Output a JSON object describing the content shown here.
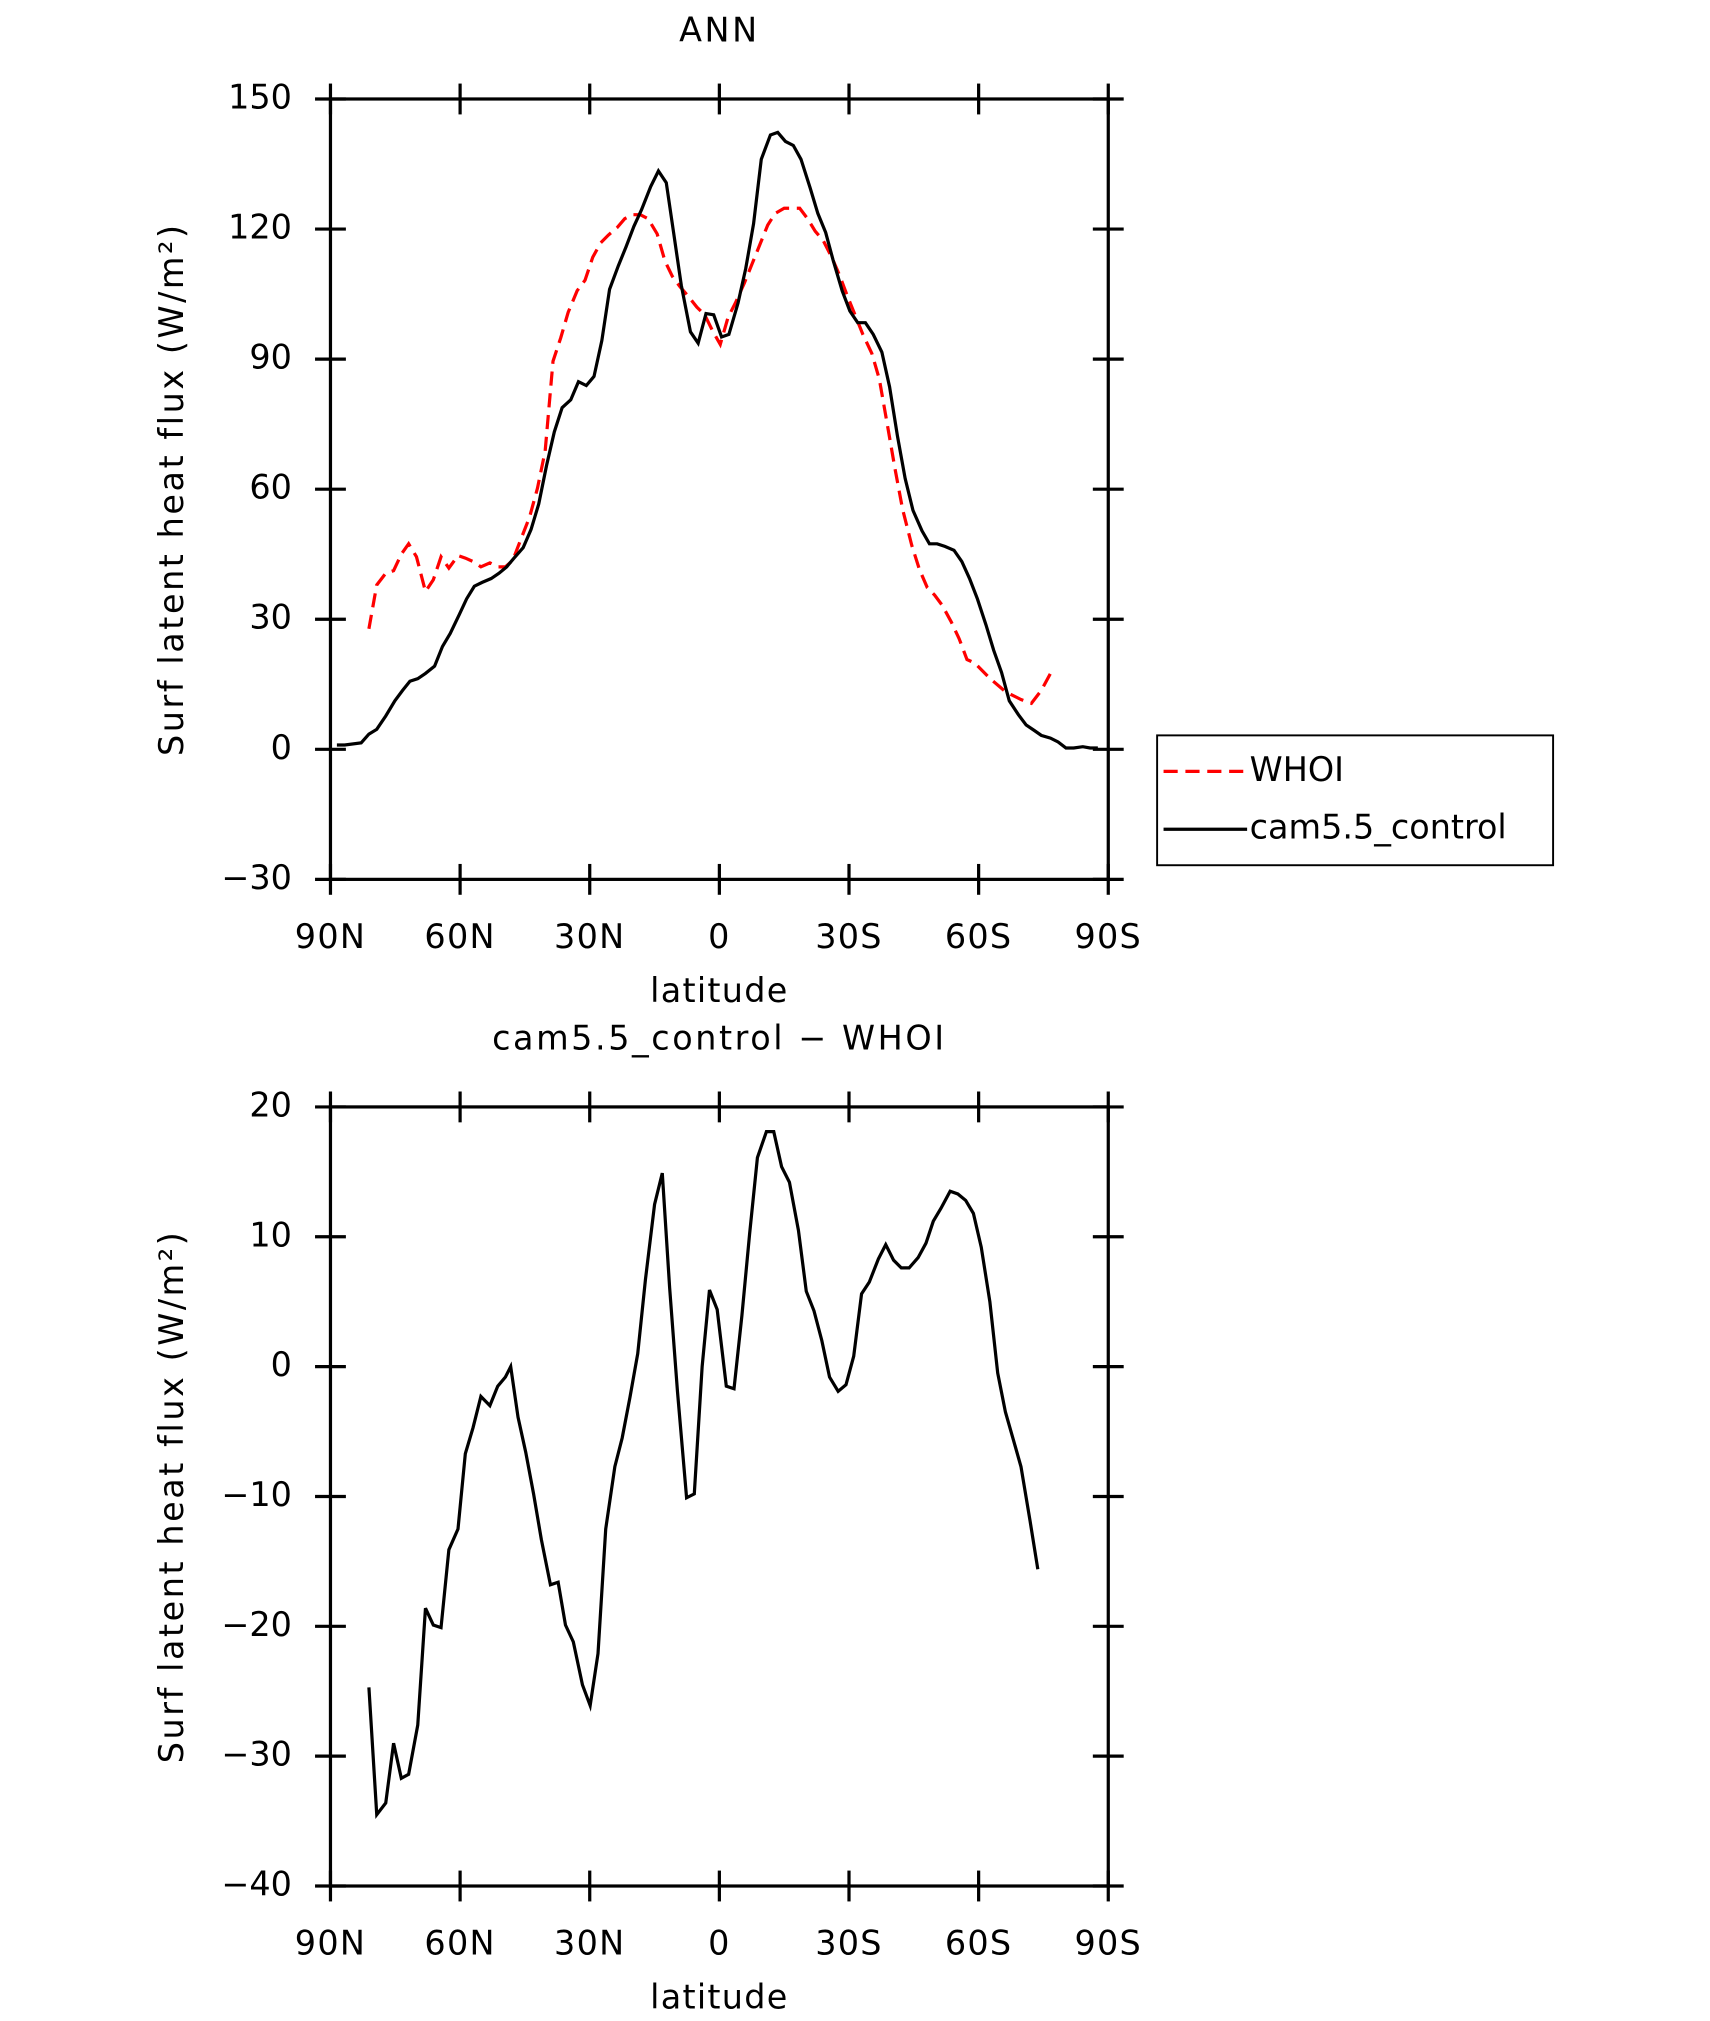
{
  "chart_data": [
    {
      "type": "line",
      "title": "ANN",
      "xlabel": "latitude",
      "ylabel": "Surf latent heat flux (W/m²)",
      "xlim": [
        90,
        -90
      ],
      "xticks": [
        {
          "value": 90,
          "label": "90N"
        },
        {
          "value": 60,
          "label": "60N"
        },
        {
          "value": 30,
          "label": "30N"
        },
        0,
        {
          "value": -30,
          "label": "30S"
        },
        {
          "value": -60,
          "label": "60S"
        },
        {
          "value": -90,
          "label": "90S"
        }
      ],
      "ylim": [
        -30,
        150
      ],
      "yticks": [
        {
          "value": -30,
          "label": "−30"
        },
        0,
        30,
        60,
        90,
        120,
        150
      ],
      "legend": "right",
      "series": [
        {
          "name": "WHOI",
          "color": "#ff0000",
          "dash": true,
          "x": [
            81.1,
            79.3,
            77.2,
            75.4,
            73.6,
            71.9,
            70.1,
            68.0,
            66.2,
            64.4,
            62.6,
            60.5,
            58.8,
            57.0,
            55.2,
            53.1,
            51.3,
            49.5,
            47.8,
            46.0,
            43.9,
            42.1,
            40.3,
            38.5,
            36.7,
            35.0,
            32.9,
            31.1,
            29.3,
            27.5,
            25.7,
            23.6,
            21.9,
            20.1,
            18.3,
            16.5,
            14.4,
            12.6,
            10.9,
            9.1,
            7.3,
            5.2,
            3.4,
            1.6,
            -0.2,
            -2.0,
            -3.7,
            -5.8,
            -7.6,
            -9.4,
            -11.2,
            -12.9,
            -15.0,
            -16.8,
            -18.6,
            -20.4,
            -22.2,
            -24.0,
            -26.0,
            -27.8,
            -29.6,
            -31.4,
            -33.2,
            -35.3,
            -37.0,
            -38.8,
            -40.6,
            -42.4,
            -44.5,
            -46.3,
            -48.1,
            -49.8,
            -51.6,
            -53.7,
            -55.5,
            -57.3,
            -59.1,
            -62.7,
            -66.2,
            -69.8,
            -72.2,
            -74.5,
            -76.9
          ],
          "values": [
            27.8,
            37.9,
            40.6,
            41.2,
            45.0,
            47.4,
            44.4,
            36.4,
            39.1,
            44.4,
            41.8,
            44.7,
            44.1,
            43.3,
            42.1,
            43.0,
            42.1,
            42.1,
            43.6,
            48.3,
            53.6,
            60.2,
            68.8,
            89.5,
            94.9,
            100.8,
            105.8,
            108.2,
            113.5,
            116.8,
            118.6,
            120.4,
            122.4,
            123.3,
            123.3,
            122.4,
            118.9,
            112.6,
            109.1,
            106.7,
            104.6,
            102.0,
            100.2,
            96.6,
            93.4,
            99.6,
            102.9,
            107.6,
            112.0,
            116.5,
            120.9,
            123.6,
            124.8,
            124.8,
            124.8,
            122.4,
            119.5,
            117.4,
            113.5,
            109.4,
            104.6,
            100.2,
            95.7,
            91.3,
            85.4,
            75.3,
            64.9,
            55.4,
            47.1,
            41.5,
            37.3,
            35.6,
            33.2,
            29.3,
            25.5,
            20.7,
            19.9,
            16.3,
            13.3,
            11.5,
            10.6,
            13.6,
            18.0
          ]
        },
        {
          "name": "cam5.5_control",
          "color": "#000000",
          "dash": false,
          "x": [
            88.5,
            86.7,
            82.9,
            81.1,
            79.3,
            77.2,
            75.1,
            73.3,
            71.6,
            69.8,
            68.0,
            65.9,
            64.1,
            62.3,
            60.2,
            58.5,
            56.7,
            54.9,
            52.8,
            51.0,
            49.2,
            47.5,
            45.4,
            43.6,
            41.8,
            40.0,
            38.2,
            36.4,
            34.4,
            32.6,
            30.8,
            29.0,
            27.2,
            25.4,
            23.4,
            21.6,
            19.8,
            18.0,
            15.9,
            14.1,
            12.3,
            10.6,
            8.8,
            6.7,
            4.9,
            3.1,
            1.3,
            -0.5,
            -2.2,
            -4.3,
            -6.1,
            -7.9,
            -9.7,
            -11.8,
            -13.5,
            -15.3,
            -17.1,
            -18.9,
            -21.0,
            -22.8,
            -24.6,
            -26.3,
            -28.4,
            -30.2,
            -32.0,
            -33.8,
            -35.6,
            -37.6,
            -39.4,
            -41.2,
            -43.0,
            -44.8,
            -46.9,
            -48.6,
            -50.4,
            -52.2,
            -54.3,
            -56.1,
            -57.9,
            -59.7,
            -61.7,
            -63.5,
            -65.3,
            -67.1,
            -69.2,
            -71.0,
            -72.8,
            -74.5,
            -76.6,
            -78.4,
            -80.2,
            -82.0,
            -84.1,
            -85.8,
            -87.6
          ],
          "values": [
            1,
            1,
            1.5,
            3.5,
            4.6,
            7.7,
            11.2,
            13.6,
            15.7,
            16.3,
            17.5,
            19.2,
            23.7,
            26.7,
            31.1,
            34.7,
            37.6,
            38.5,
            39.4,
            40.6,
            42.1,
            44.1,
            46.5,
            50.7,
            56.6,
            65.5,
            73.2,
            78.8,
            80.6,
            84.8,
            83.9,
            86.0,
            94.3,
            106.1,
            111.5,
            115.9,
            120.6,
            124.5,
            129.8,
            133.4,
            130.7,
            119.2,
            107.0,
            96.3,
            93.7,
            100.5,
            100.2,
            95.1,
            95.7,
            102.9,
            110.9,
            121.2,
            136.1,
            141.7,
            142.3,
            140.2,
            139.3,
            136.1,
            129.5,
            123.6,
            119.2,
            112.9,
            105.8,
            101.1,
            98.4,
            98.4,
            95.7,
            91.6,
            83.6,
            72.3,
            62.5,
            55.1,
            50.4,
            47.4,
            47.4,
            46.8,
            45.9,
            43.3,
            39.4,
            34.7,
            28.7,
            22.8,
            17.7,
            11.2,
            8.0,
            5.6,
            4.4,
            3.2,
            2.6,
            1.7,
            0.3,
            0.3,
            0.6,
            0.3,
            0.3
          ]
        }
      ]
    },
    {
      "type": "line",
      "title": "cam5.5_control − WHOI",
      "xlabel": "latitude",
      "ylabel": "Surf latent heat flux (W/m²)",
      "xlim": [
        90,
        -90
      ],
      "xticks": [
        {
          "value": 90,
          "label": "90N"
        },
        {
          "value": 60,
          "label": "60N"
        },
        {
          "value": 30,
          "label": "30N"
        },
        0,
        {
          "value": -30,
          "label": "30S"
        },
        {
          "value": -60,
          "label": "60S"
        },
        {
          "value": -90,
          "label": "90S"
        }
      ],
      "ylim": [
        -40,
        20
      ],
      "yticks": [
        {
          "value": -40,
          "label": "−40"
        },
        {
          "value": -30,
          "label": "−30"
        },
        {
          "value": -20,
          "label": "−20"
        },
        {
          "value": -10,
          "label": "−10"
        },
        0,
        10,
        20
      ],
      "series": [
        {
          "color": "#000000",
          "dash": false,
          "x": [
            81.1,
            79.3,
            77.2,
            75.4,
            73.6,
            71.9,
            69.8,
            68.0,
            66.2,
            64.4,
            62.6,
            60.5,
            58.8,
            57.0,
            55.2,
            53.1,
            51.3,
            49.5,
            48.3,
            46.6,
            44.8,
            43.0,
            41.2,
            39.1,
            37.3,
            35.6,
            33.8,
            31.7,
            29.9,
            28.1,
            26.3,
            24.2,
            22.5,
            20.7,
            18.9,
            17.1,
            15.0,
            13.2,
            11.5,
            9.7,
            7.6,
            5.8,
            4.0,
            2.3,
            0.5,
            -1.6,
            -3.4,
            -5.2,
            -7.0,
            -8.8,
            -10.9,
            -12.6,
            -14.4,
            -16.2,
            -18.3,
            -20.1,
            -21.9,
            -23.7,
            -25.5,
            -27.5,
            -29.3,
            -31.1,
            -32.9,
            -34.7,
            -36.8,
            -38.5,
            -40.3,
            -42.1,
            -43.9,
            -46.0,
            -47.8,
            -49.5,
            -51.3,
            -53.4,
            -55.2,
            -57.0,
            -58.8,
            -60.6,
            -62.6,
            -64.4,
            -66.2,
            -68.0,
            -69.8,
            -71.9,
            -73.7
          ],
          "values": [
            -24.7,
            -34.5,
            -33.6,
            -29.0,
            -31.7,
            -31.4,
            -27.6,
            -18.6,
            -19.9,
            -20.1,
            -14.1,
            -12.5,
            -6.7,
            -4.7,
            -2.3,
            -3.0,
            -1.5,
            -0.8,
            0.0,
            -3.9,
            -6.6,
            -9.8,
            -13.3,
            -16.8,
            -16.6,
            -19.9,
            -21.2,
            -24.5,
            -26.1,
            -22.1,
            -12.5,
            -7.7,
            -5.5,
            -2.4,
            1.0,
            6.7,
            12.5,
            14.9,
            6.1,
            -1.9,
            -10.1,
            -9.8,
            0.0,
            5.9,
            4.4,
            -1.5,
            -1.7,
            3.9,
            10.2,
            16.1,
            18.1,
            18.1,
            15.4,
            14.2,
            10.5,
            5.8,
            4.3,
            2.0,
            -0.8,
            -1.9,
            -1.4,
            0.8,
            5.6,
            6.5,
            8.3,
            9.4,
            8.2,
            7.6,
            7.6,
            8.4,
            9.5,
            11.2,
            12.2,
            13.5,
            13.3,
            12.8,
            11.8,
            9.2,
            5.0,
            -0.5,
            -3.5,
            -5.6,
            -7.7,
            -11.9,
            -15.6
          ]
        }
      ]
    }
  ]
}
